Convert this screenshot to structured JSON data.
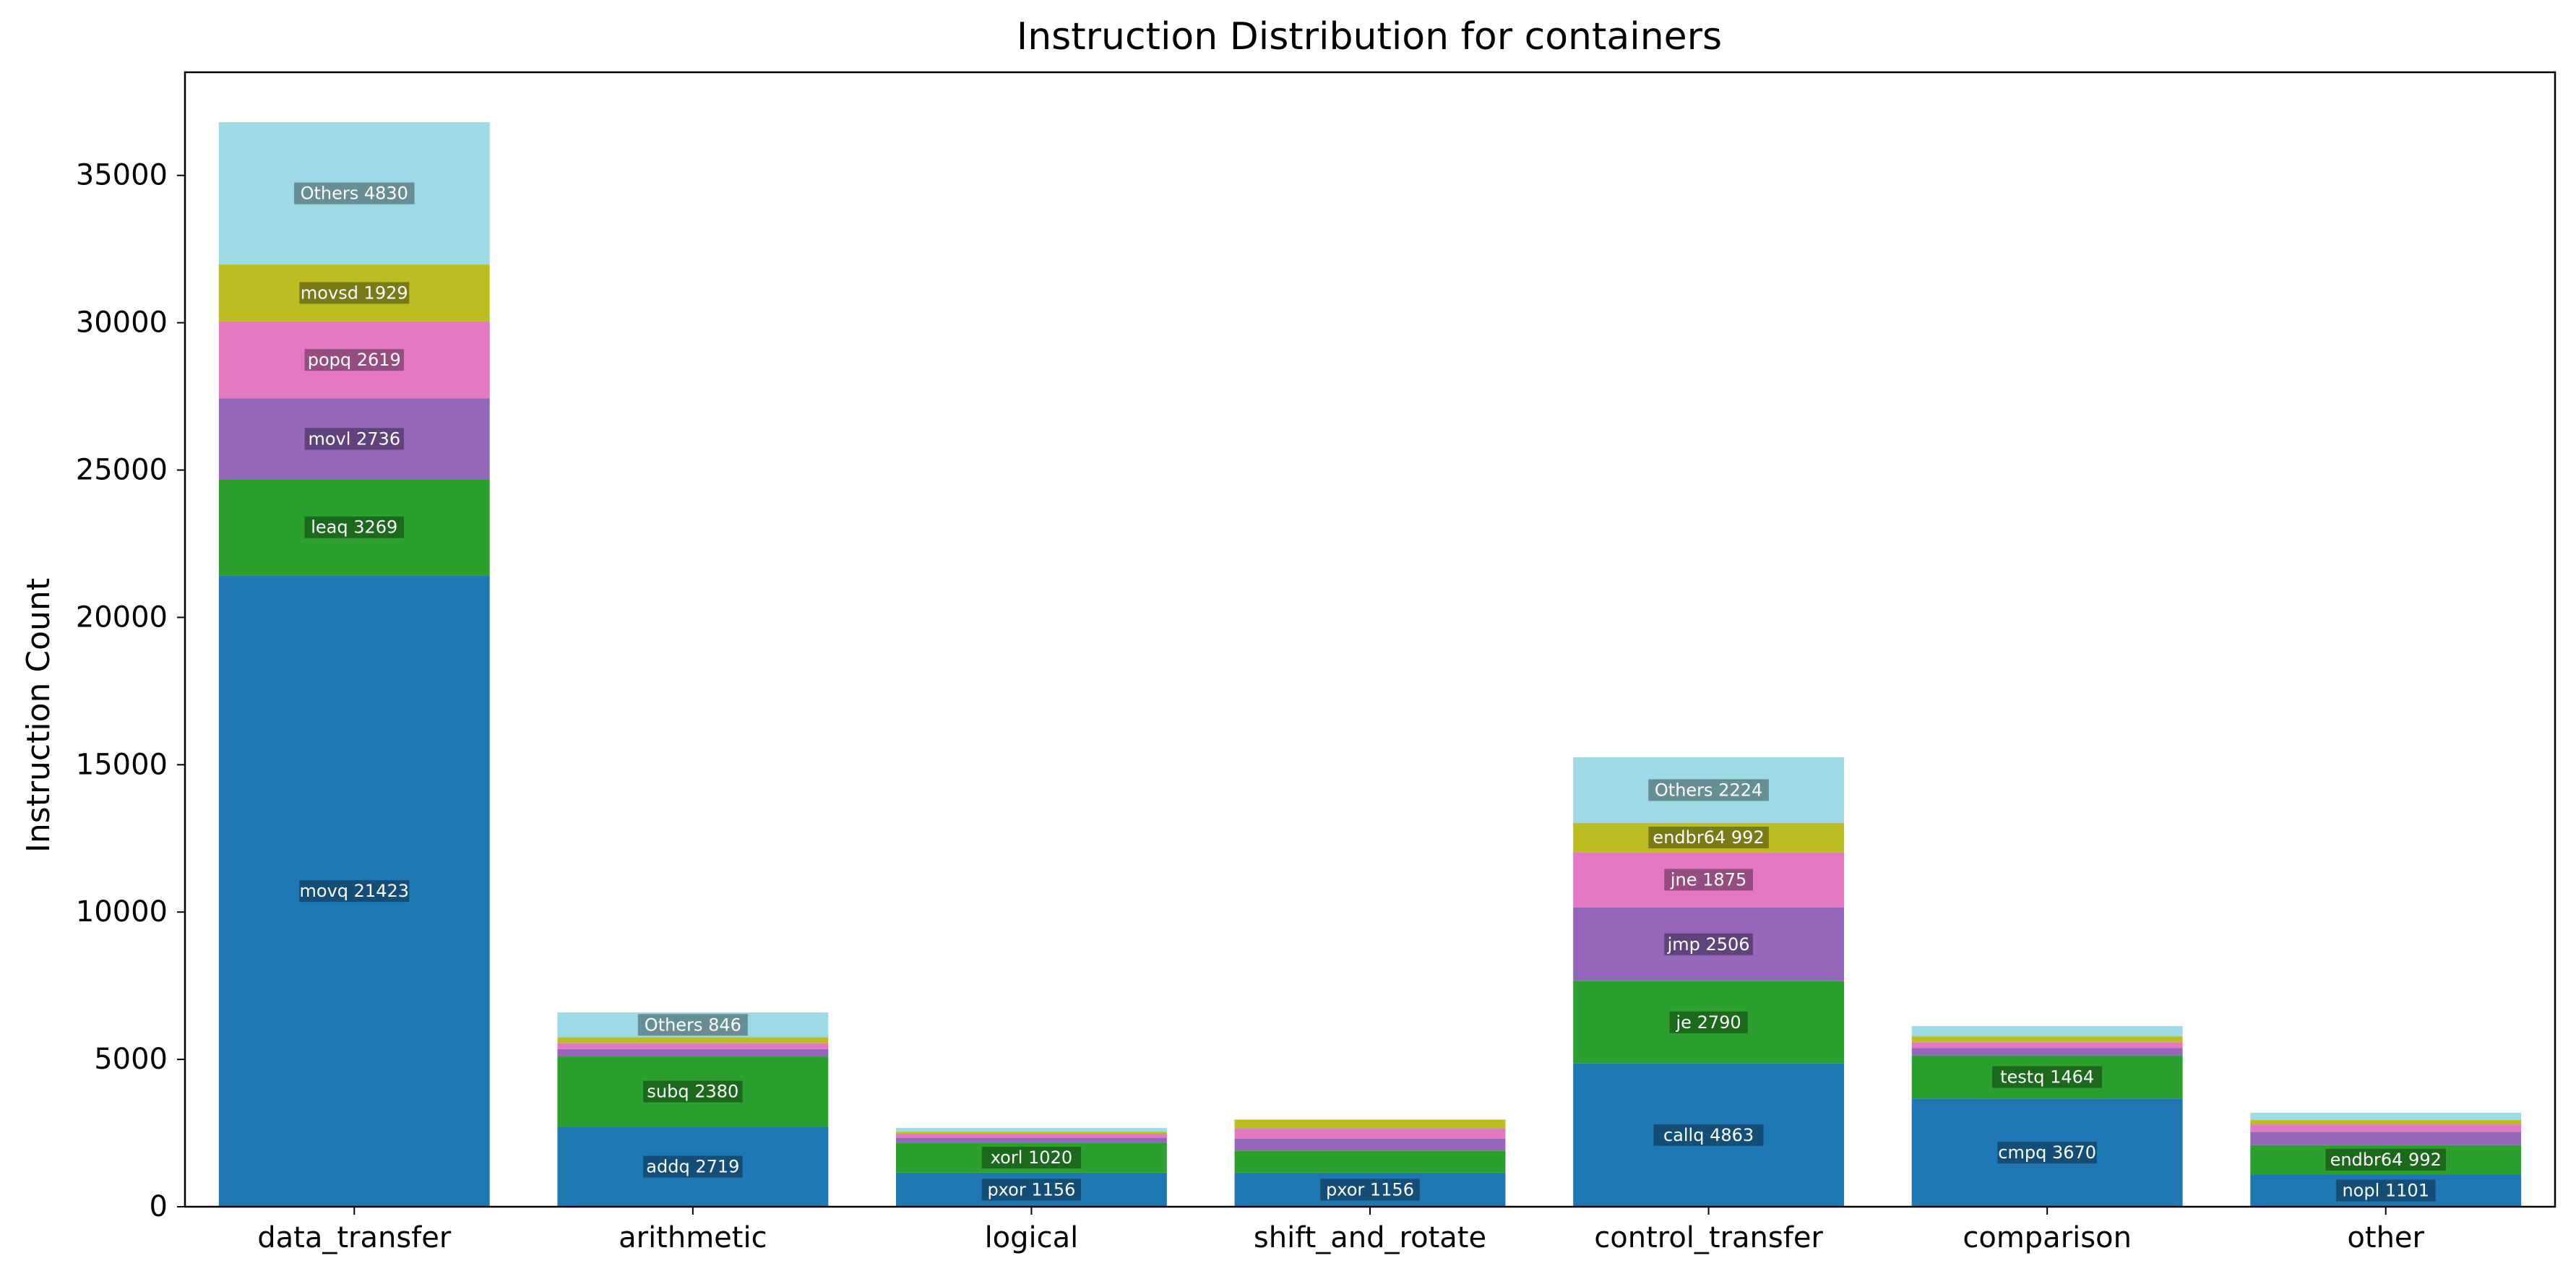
{
  "chart_data": {
    "type": "bar",
    "stacked": true,
    "title": "Instruction Distribution for containers",
    "xlabel": "",
    "ylabel": "Instruction Count",
    "ylim": [
      0,
      38500
    ],
    "yticks": [
      0,
      5000,
      10000,
      15000,
      20000,
      25000,
      30000,
      35000
    ],
    "ytick_labels": [
      "0",
      "5000",
      "10000",
      "15000",
      "20000",
      "25000",
      "30000",
      "35000"
    ],
    "grid": false,
    "legend": "none",
    "categories": [
      "data_transfer",
      "arithmetic",
      "logical",
      "shift_and_rotate",
      "control_transfer",
      "comparison",
      "other"
    ],
    "layer_colors": [
      "#1f77b4",
      "#2ca02c",
      "#9467bd",
      "#e377c2",
      "#bcbd22",
      "#9edae5"
    ],
    "stacks": [
      [
        {
          "value": 21423,
          "label": "movq 21423"
        },
        {
          "value": 3269,
          "label": "leaq 3269"
        },
        {
          "value": 2736,
          "label": "movl 2736"
        },
        {
          "value": 2619,
          "label": "popq 2619"
        },
        {
          "value": 1929,
          "label": "movsd 1929"
        },
        {
          "value": 4830,
          "label": "Others 4830"
        }
      ],
      [
        {
          "value": 2719,
          "label": "addq 2719"
        },
        {
          "value": 2380,
          "label": "subq 2380"
        },
        {
          "value": 250,
          "label": ""
        },
        {
          "value": 200,
          "label": ""
        },
        {
          "value": 200,
          "label": ""
        },
        {
          "value": 846,
          "label": "Others 846"
        }
      ],
      [
        {
          "value": 1156,
          "label": "pxor 1156"
        },
        {
          "value": 1020,
          "label": "xorl 1020"
        },
        {
          "value": 170,
          "label": ""
        },
        {
          "value": 130,
          "label": ""
        },
        {
          "value": 70,
          "label": ""
        },
        {
          "value": 130,
          "label": ""
        }
      ],
      [
        {
          "value": 1156,
          "label": "pxor 1156"
        },
        {
          "value": 750,
          "label": ""
        },
        {
          "value": 400,
          "label": ""
        },
        {
          "value": 350,
          "label": ""
        },
        {
          "value": 300,
          "label": ""
        },
        {
          "value": 0,
          "label": ""
        }
      ],
      [
        {
          "value": 4863,
          "label": "callq 4863"
        },
        {
          "value": 2790,
          "label": "je 2790"
        },
        {
          "value": 2506,
          "label": "jmp 2506"
        },
        {
          "value": 1875,
          "label": "jne 1875"
        },
        {
          "value": 992,
          "label": "endbr64 992"
        },
        {
          "value": 2224,
          "label": "Others 2224"
        }
      ],
      [
        {
          "value": 3670,
          "label": "cmpq 3670"
        },
        {
          "value": 1464,
          "label": "testq 1464"
        },
        {
          "value": 250,
          "label": ""
        },
        {
          "value": 200,
          "label": ""
        },
        {
          "value": 200,
          "label": ""
        },
        {
          "value": 350,
          "label": ""
        }
      ],
      [
        {
          "value": 1101,
          "label": "nopl 1101"
        },
        {
          "value": 992,
          "label": "endbr64 992"
        },
        {
          "value": 450,
          "label": ""
        },
        {
          "value": 250,
          "label": ""
        },
        {
          "value": 150,
          "label": ""
        },
        {
          "value": 250,
          "label": ""
        }
      ]
    ]
  }
}
